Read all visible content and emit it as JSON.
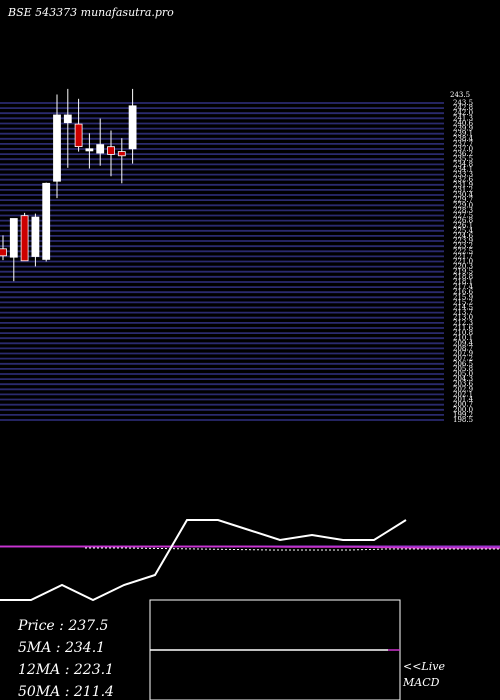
{
  "header": {
    "title": "BSE 543373 munafasutra.pro"
  },
  "chart_data": {
    "type": "candlestick",
    "price_axis": {
      "ylim": [
        198.5,
        243.5
      ],
      "top_label": "243.5"
    },
    "candles": [
      {
        "o": 222.8,
        "h": 224.7,
        "l": 221.2,
        "c": 221.8,
        "color": "red"
      },
      {
        "o": 221.6,
        "h": 227.0,
        "l": 218.2,
        "c": 227.1,
        "color": "white"
      },
      {
        "o": 227.5,
        "h": 227.9,
        "l": 221.3,
        "c": 221.1,
        "color": "red"
      },
      {
        "o": 221.7,
        "h": 227.8,
        "l": 220.3,
        "c": 227.3,
        "color": "white"
      },
      {
        "o": 221.3,
        "h": 232.2,
        "l": 221.0,
        "c": 232.1,
        "color": "white"
      },
      {
        "o": 232.4,
        "h": 244.7,
        "l": 230.0,
        "c": 241.8,
        "color": "white"
      },
      {
        "o": 240.7,
        "h": 245.5,
        "l": 234.3,
        "c": 241.8,
        "color": "white"
      },
      {
        "o": 240.5,
        "h": 244.1,
        "l": 236.6,
        "c": 237.3,
        "color": "red"
      },
      {
        "o": 237.0,
        "h": 239.2,
        "l": 234.2,
        "c": 236.7,
        "color": "white"
      },
      {
        "o": 236.4,
        "h": 241.3,
        "l": 234.6,
        "c": 237.6,
        "color": "white"
      },
      {
        "o": 237.3,
        "h": 239.6,
        "l": 233.1,
        "c": 236.2,
        "color": "red"
      },
      {
        "o": 236.6,
        "h": 238.5,
        "l": 232.1,
        "c": 236.0,
        "color": "red"
      },
      {
        "o": 237.0,
        "h": 245.5,
        "l": 234.9,
        "c": 243.1,
        "color": "white"
      }
    ],
    "macd": {
      "line": [
        0.0,
        0.0,
        0.3,
        0.0,
        0.3,
        0.5,
        1.6,
        1.6,
        1.4,
        1.2,
        1.3,
        1.2,
        1.2,
        1.6
      ],
      "signal": [
        1.07,
        1.07,
        1.07,
        1.07,
        1.07,
        1.07,
        1.07,
        1.07,
        1.06,
        1.06,
        1.06,
        1.05,
        1.04,
        1.04,
        1.04
      ],
      "histogram": [
        1.04,
        1.04,
        1.03,
        1.02,
        1.01,
        1.0,
        1.0,
        1.0,
        1.02,
        1.02,
        1.02,
        1.02
      ]
    },
    "legend": {
      "price": "Price    : 237.5",
      "ma5": "5MA : 234.1",
      "ma12": "12MA : 223.1",
      "ma50": "50MA : 211.4"
    },
    "live_label": [
      "<<Live",
      "MACD"
    ]
  }
}
